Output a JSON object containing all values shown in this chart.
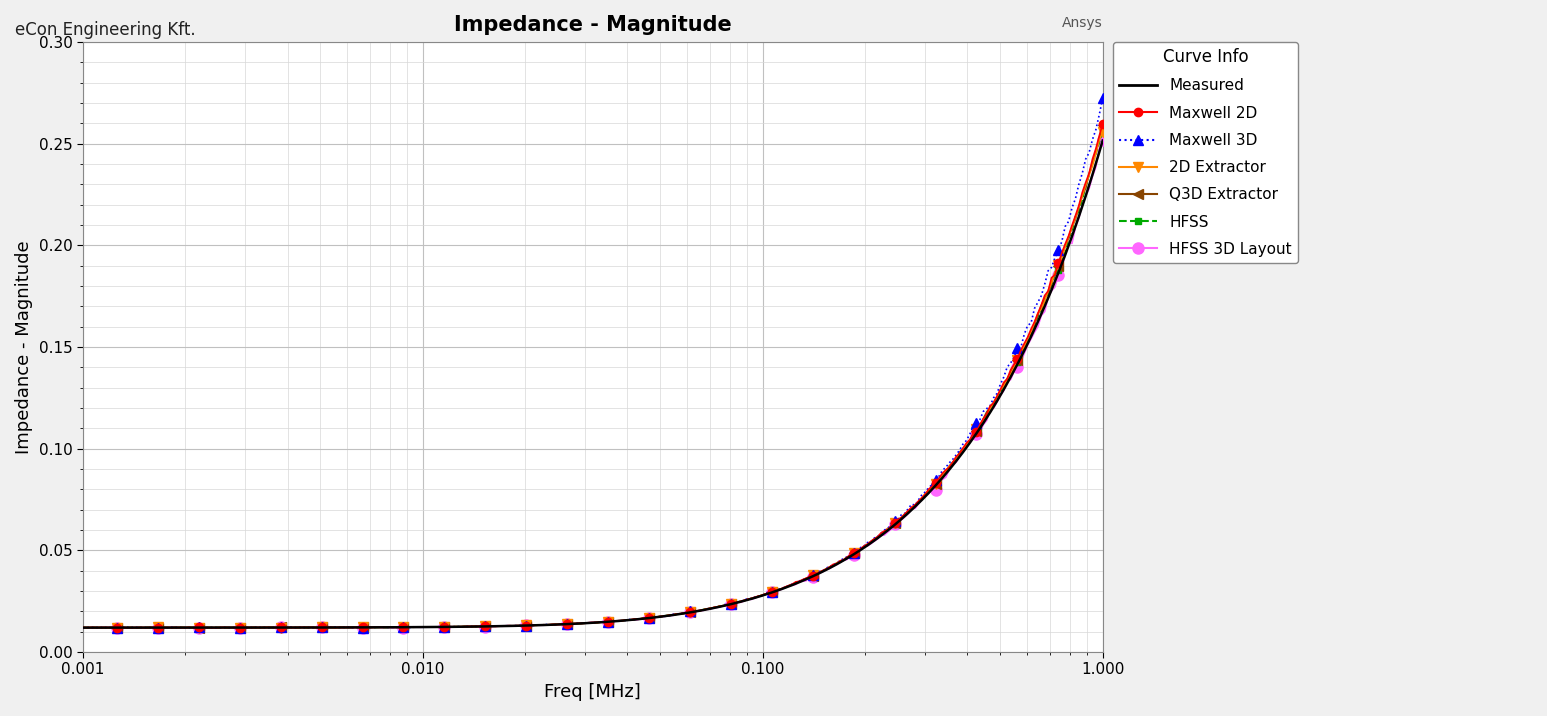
{
  "title": "Impedance - Magnitude",
  "xlabel": "Freq [MHz]",
  "ylabel": "Impedance - Magnitude",
  "watermark_left": "eCon Engineering Kft.",
  "watermark_right": "Ansys",
  "xmin": 0.001,
  "xmax": 1.0,
  "ymin": 0.0,
  "ymax": 0.3,
  "yticks": [
    0.0,
    0.05,
    0.1,
    0.15,
    0.2,
    0.25,
    0.3
  ],
  "background_color": "#f0f0f0",
  "plot_bg_color": "#ffffff",
  "curves": [
    {
      "label": "Measured",
      "color": "#000000",
      "linestyle": "-",
      "marker": "none",
      "linewidth": 1.8
    },
    {
      "label": "Maxwell 2D",
      "color": "#ff0000",
      "linestyle": "-",
      "marker": "o",
      "linewidth": 1.2
    },
    {
      "label": "Maxwell 3D",
      "color": "#0000ff",
      "linestyle": ":",
      "marker": "^",
      "linewidth": 1.2
    },
    {
      "label": "2D Extractor",
      "color": "#ff8800",
      "linestyle": "-",
      "marker": "v",
      "linewidth": 1.2
    },
    {
      "label": "Q3D Extractor",
      "color": "#884400",
      "linestyle": "-",
      "marker": "<",
      "linewidth": 1.2
    },
    {
      "label": "HFSS",
      "color": "#00aa00",
      "linestyle": "--",
      "marker": "s",
      "linewidth": 1.2
    },
    {
      "label": "HFSS 3D Layout",
      "color": "#ff66ff",
      "linestyle": "-",
      "marker": "o",
      "linewidth": 1.2
    }
  ]
}
